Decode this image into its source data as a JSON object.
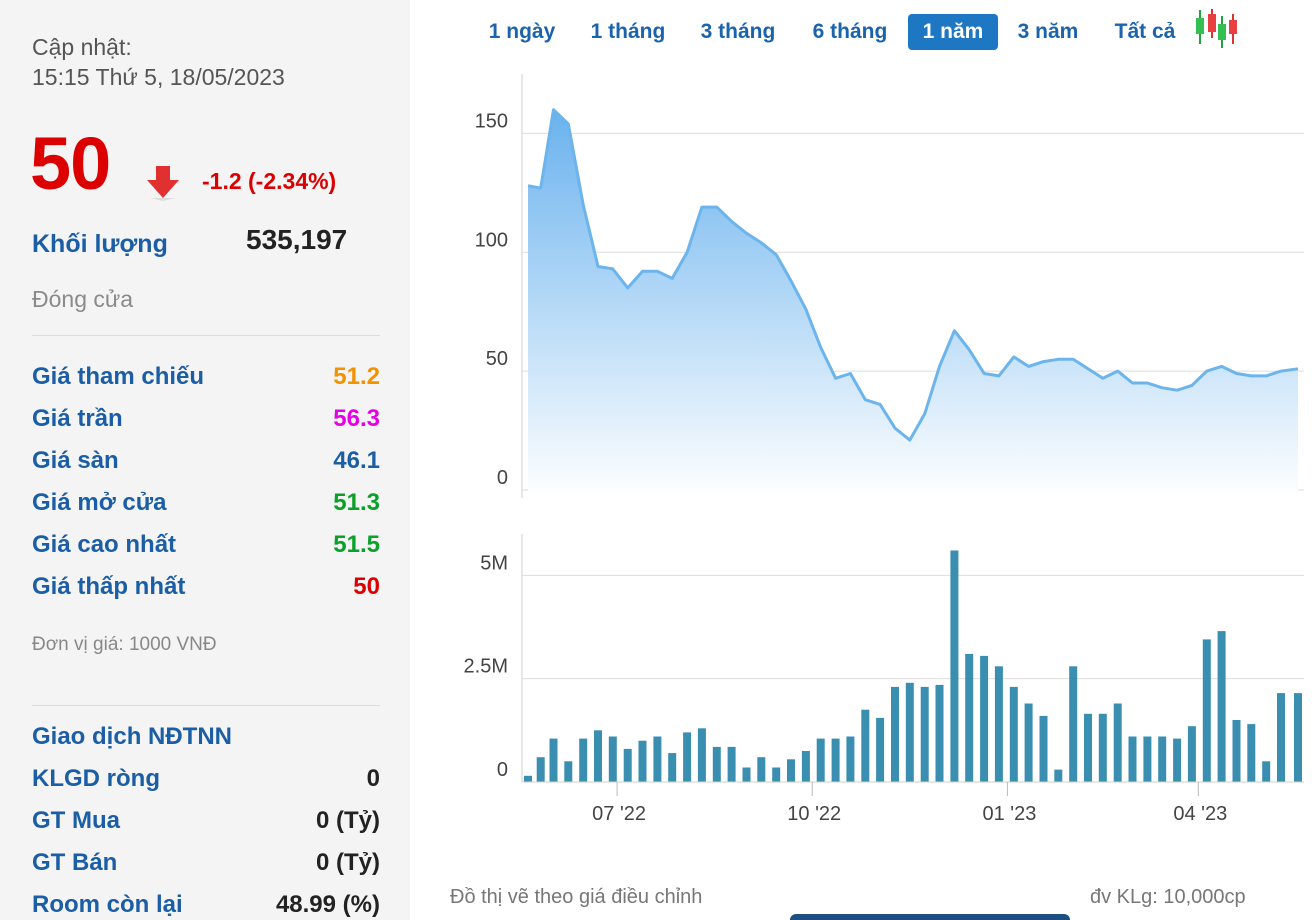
{
  "update": {
    "label": "Cập nhật:",
    "time": "15:15 Thứ 5, 18/05/2023"
  },
  "quote": {
    "price": "50",
    "change": "-1.2 (-2.34%)",
    "direction_icon": "arrow-down-icon",
    "volume_label": "Khối lượng",
    "volume_value": "535,197",
    "status": "Đóng cửa"
  },
  "price_rows": [
    {
      "label": "Giá tham chiếu",
      "value": "51.2",
      "color": "#f39200"
    },
    {
      "label": "Giá trần",
      "value": "56.3",
      "color": "#e600e6"
    },
    {
      "label": "Giá sàn",
      "value": "46.1",
      "color": "#1b5ea5"
    },
    {
      "label": "Giá mở cửa",
      "value": "51.3",
      "color": "#0aa02a"
    },
    {
      "label": "Giá cao nhất",
      "value": "51.5",
      "color": "#0aa02a"
    },
    {
      "label": "Giá thấp nhất",
      "value": "50",
      "color": "#dd0000"
    }
  ],
  "unit_note": "Đơn vị giá: 1000 VNĐ",
  "foreign": {
    "title": "Giao dịch NĐTNN",
    "rows": [
      {
        "label": "KLGD ròng",
        "value": "0"
      },
      {
        "label": "GT Mua",
        "value": "0 (Tỷ)"
      },
      {
        "label": "GT Bán",
        "value": "0 (Tỷ)"
      },
      {
        "label": "Room còn lại",
        "value": "48.99 (%)"
      }
    ]
  },
  "tabs": [
    {
      "label": "1 ngày",
      "active": false
    },
    {
      "label": "1 tháng",
      "active": false
    },
    {
      "label": "3 tháng",
      "active": false
    },
    {
      "label": "6 tháng",
      "active": false
    },
    {
      "label": "1 năm",
      "active": true
    },
    {
      "label": "3 năm",
      "active": false
    },
    {
      "label": "Tất cả",
      "active": false
    }
  ],
  "candlestick_icon": "candlestick-chart-icon",
  "footer": {
    "left": "Đồ thị vẽ theo giá điều chỉnh",
    "right": "đv KLg: 10,000cp"
  },
  "chart_data": [
    {
      "type": "area",
      "ylim": [
        0,
        175
      ],
      "yticks": [
        0,
        50,
        100,
        150
      ],
      "grid": true,
      "colors": {
        "line": "#6cb4ec",
        "fill_top": "#6ab2ee",
        "fill_bottom": "#ffffff"
      },
      "x": [
        "2022-05-20",
        "2022-05-26",
        "2022-06-01",
        "2022-06-08",
        "2022-06-15",
        "2022-06-22",
        "2022-06-29",
        "2022-07-06",
        "2022-07-13",
        "2022-07-20",
        "2022-07-27",
        "2022-08-03",
        "2022-08-10",
        "2022-08-17",
        "2022-08-24",
        "2022-08-31",
        "2022-09-07",
        "2022-09-14",
        "2022-09-21",
        "2022-09-28",
        "2022-10-05",
        "2022-10-12",
        "2022-10-19",
        "2022-10-26",
        "2022-11-02",
        "2022-11-09",
        "2022-11-16",
        "2022-11-23",
        "2022-11-30",
        "2022-12-07",
        "2022-12-14",
        "2022-12-21",
        "2022-12-28",
        "2023-01-04",
        "2023-01-11",
        "2023-01-18",
        "2023-01-25",
        "2023-02-01",
        "2023-02-08",
        "2023-02-15",
        "2023-02-22",
        "2023-03-01",
        "2023-03-08",
        "2023-03-15",
        "2023-03-22",
        "2023-03-29",
        "2023-04-05",
        "2023-04-12",
        "2023-04-19",
        "2023-04-26",
        "2023-05-03",
        "2023-05-10",
        "2023-05-18"
      ],
      "values": [
        128,
        127,
        160,
        154,
        120,
        94,
        93,
        85,
        92,
        92,
        89,
        100,
        119,
        119,
        113,
        108,
        104,
        99,
        88,
        76,
        60,
        47,
        49,
        38,
        36,
        26,
        21,
        32,
        52,
        67,
        59,
        49,
        48,
        56,
        52,
        54,
        55,
        55,
        51,
        47,
        50,
        45,
        45,
        43,
        42,
        44,
        50,
        52,
        49,
        48,
        48,
        50,
        51
      ]
    },
    {
      "type": "bar",
      "ylim": [
        0,
        6000000
      ],
      "yticks": [
        0,
        2500000,
        5000000
      ],
      "ytick_labels": [
        "0",
        "2.5M",
        "5M"
      ],
      "grid": true,
      "colors": {
        "bar": "#3a8fb0"
      },
      "x": [
        "2022-05-20",
        "2022-05-26",
        "2022-06-01",
        "2022-06-08",
        "2022-06-15",
        "2022-06-22",
        "2022-06-29",
        "2022-07-06",
        "2022-07-13",
        "2022-07-20",
        "2022-07-27",
        "2022-08-03",
        "2022-08-10",
        "2022-08-17",
        "2022-08-24",
        "2022-08-31",
        "2022-09-07",
        "2022-09-14",
        "2022-09-21",
        "2022-09-28",
        "2022-10-05",
        "2022-10-12",
        "2022-10-19",
        "2022-10-26",
        "2022-11-02",
        "2022-11-09",
        "2022-11-16",
        "2022-11-23",
        "2022-11-30",
        "2022-12-07",
        "2022-12-14",
        "2022-12-21",
        "2022-12-28",
        "2023-01-04",
        "2023-01-11",
        "2023-01-18",
        "2023-01-25",
        "2023-02-01",
        "2023-02-08",
        "2023-02-15",
        "2023-02-22",
        "2023-03-01",
        "2023-03-08",
        "2023-03-15",
        "2023-03-22",
        "2023-03-29",
        "2023-04-05",
        "2023-04-12",
        "2023-04-19",
        "2023-04-26",
        "2023-05-03",
        "2023-05-10",
        "2023-05-18"
      ],
      "values": [
        150000,
        600000,
        1050000,
        500000,
        1050000,
        1250000,
        1100000,
        800000,
        1000000,
        1100000,
        700000,
        1200000,
        1300000,
        850000,
        850000,
        350000,
        600000,
        350000,
        550000,
        750000,
        1050000,
        1050000,
        1100000,
        1750000,
        1550000,
        2300000,
        2400000,
        2300000,
        2350000,
        5600000,
        3100000,
        3050000,
        2800000,
        2300000,
        1900000,
        1600000,
        300000,
        2800000,
        1650000,
        1650000,
        1900000,
        1100000,
        1100000,
        1100000,
        1050000,
        1350000,
        3450000,
        3650000,
        1500000,
        1400000,
        500000,
        2150000,
        2150000
      ]
    },
    {
      "type": "axis",
      "xticks": [
        "2022-07-01",
        "2022-10-01",
        "2023-01-01",
        "2023-04-01"
      ],
      "xtick_labels": [
        "07 '22",
        "10 '22",
        "01 '23",
        "04 '23"
      ]
    }
  ]
}
